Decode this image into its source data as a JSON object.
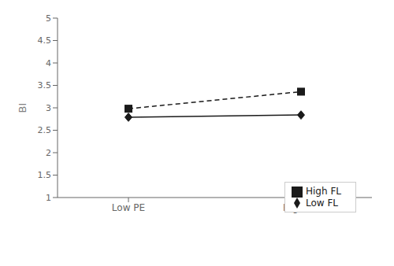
{
  "chart_data": {
    "type": "line",
    "categories": [
      "Low PE",
      "High PE"
    ],
    "series": [
      {
        "name": "Low FL",
        "color": "#1a1a1a",
        "values": [
          2.79,
          2.84
        ],
        "marker": "diamond",
        "line_style": "solid"
      },
      {
        "name": "High FL",
        "color": "#1a1a1a",
        "values": [
          2.98,
          3.36
        ],
        "marker": "square",
        "line_style": "dashed"
      }
    ],
    "ylabel": "BI",
    "ylim": [
      1,
      5
    ],
    "yticks": [
      1,
      1.5,
      2,
      2.5,
      3,
      3.5,
      4,
      4.5,
      5
    ],
    "grid": false,
    "legend": "lower right"
  }
}
